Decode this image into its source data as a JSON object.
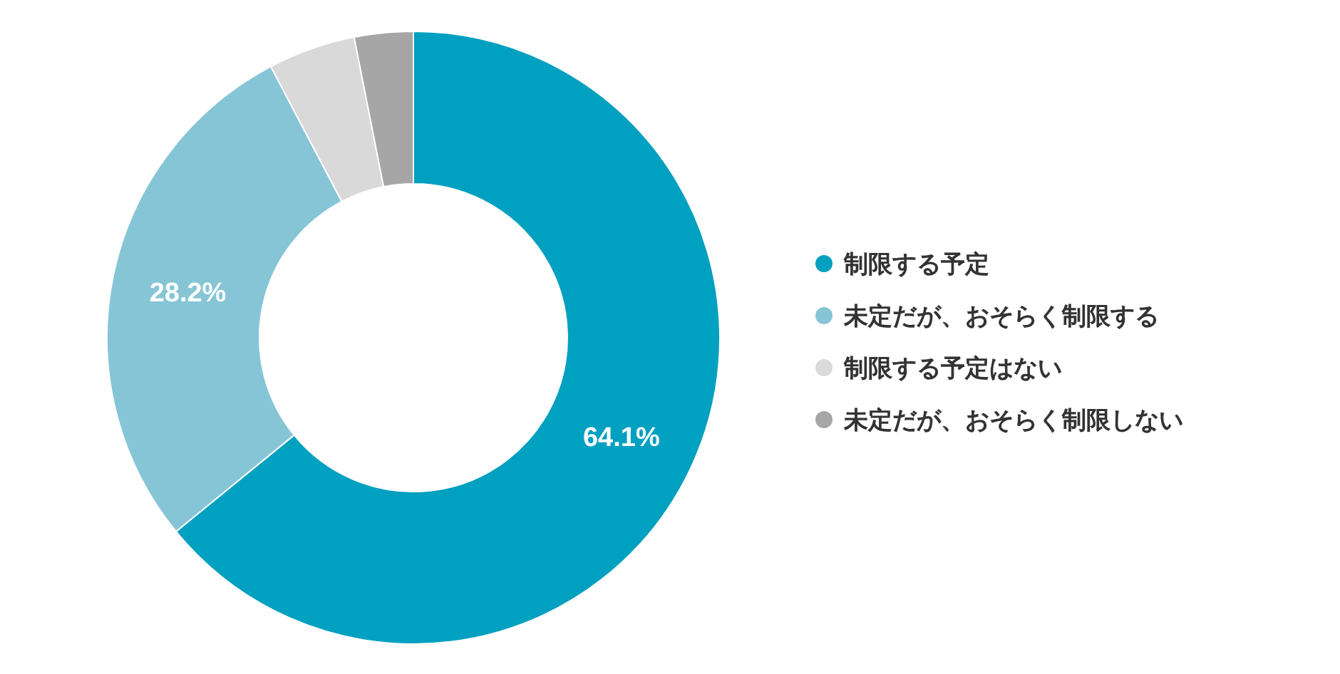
{
  "chart_data": {
    "type": "donut",
    "categories": [
      "制限する予定",
      "未定だが、おそらく制限する",
      "制限する予定はない",
      "未定だが、おそらく制限しない"
    ],
    "values": [
      64.1,
      28.2,
      4.6,
      3.1
    ],
    "value_labels": [
      "64.1%",
      "28.2%",
      null,
      null
    ],
    "colors": [
      "#00a0c0",
      "#86c5d6",
      "#d9d9d9",
      "#a6a6a6"
    ],
    "legend": "right"
  }
}
